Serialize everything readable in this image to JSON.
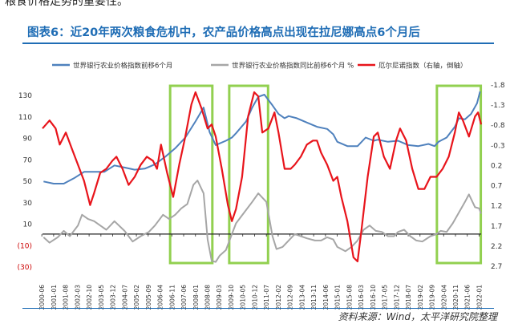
{
  "top_text": "粮食价格走势的重要性。",
  "title": "图表6：近20年两次粮食危机中，农产品价格高点出现在拉尼娜高点6个月后",
  "source": "资料来源：Wind，太平洋研究院整理",
  "chart_data": {
    "type": "line",
    "x_ticks": [
      "2000-06",
      "2001-01",
      "2001-08",
      "2002-03",
      "2002-10",
      "2003-05",
      "2003-12",
      "2004-07",
      "2005-02",
      "2005-09",
      "2006-04",
      "2006-11",
      "2007-06",
      "2008-01",
      "2008-08",
      "2009-03",
      "2009-10",
      "2010-05",
      "2010-12",
      "2011-07",
      "2012-02",
      "2012-09",
      "2013-04",
      "2013-11",
      "2014-06",
      "2015-01",
      "2015-08",
      "2016-03",
      "2016-10",
      "2017-05",
      "2017-12",
      "2018-07",
      "2019-02",
      "2019-09",
      "2020-04",
      "2020-11",
      "2021-06",
      "2022-01"
    ],
    "left_axis": {
      "ticks": [
        130,
        110,
        90,
        70,
        50,
        30,
        10,
        "(10)",
        "(30)"
      ],
      "range": [
        -30,
        140
      ]
    },
    "right_axis": {
      "ticks": [
        -1.8,
        -1.3,
        -0.8,
        -0.3,
        0.2,
        0.7,
        1.2,
        1.7,
        2.2,
        2.7
      ],
      "range": [
        -1.8,
        2.7
      ],
      "inverted": true
    },
    "legend": [
      {
        "name": "世界银行农业价格指数前移6个月",
        "color": "#4f81bd"
      },
      {
        "name": "世界银行农业价格指数同比前移6个月 %",
        "color": "#a6a6a6"
      },
      {
        "name": "厄尔尼诺指数（右轴，倒轴）",
        "color": "#e8141b"
      }
    ],
    "highlight_boxes": [
      {
        "from": "2006-10",
        "to": "2008-11"
      },
      {
        "from": "2009-09",
        "to": "2011-08"
      },
      {
        "from": "2019-12",
        "to": "2022-02"
      }
    ],
    "series": [
      {
        "name": "世界银行农业价格指数前移6个月",
        "axis": "left",
        "color": "#4f81bd",
        "points": [
          [
            2000.5,
            49
          ],
          [
            2001.0,
            47
          ],
          [
            2001.5,
            47
          ],
          [
            2002.0,
            52
          ],
          [
            2002.5,
            58
          ],
          [
            2003.0,
            58
          ],
          [
            2003.5,
            58
          ],
          [
            2004.0,
            64
          ],
          [
            2004.5,
            62
          ],
          [
            2005.0,
            60
          ],
          [
            2005.5,
            61
          ],
          [
            2006.0,
            65
          ],
          [
            2006.5,
            72
          ],
          [
            2007.0,
            80
          ],
          [
            2007.5,
            90
          ],
          [
            2008.0,
            105
          ],
          [
            2008.4,
            118
          ],
          [
            2008.7,
            95
          ],
          [
            2009.0,
            83
          ],
          [
            2009.5,
            87
          ],
          [
            2009.8,
            90
          ],
          [
            2010.0,
            94
          ],
          [
            2010.5,
            105
          ],
          [
            2010.8,
            118
          ],
          [
            2011.1,
            128
          ],
          [
            2011.4,
            130
          ],
          [
            2011.8,
            120
          ],
          [
            2012.1,
            112
          ],
          [
            2012.4,
            108
          ],
          [
            2012.6,
            110
          ],
          [
            2013.0,
            108
          ],
          [
            2013.5,
            104
          ],
          [
            2014.0,
            100
          ],
          [
            2014.5,
            98
          ],
          [
            2014.8,
            93
          ],
          [
            2015.0,
            86
          ],
          [
            2015.5,
            82
          ],
          [
            2016.0,
            82
          ],
          [
            2016.4,
            90
          ],
          [
            2016.8,
            87
          ],
          [
            2017.0,
            88
          ],
          [
            2017.5,
            86
          ],
          [
            2018.0,
            87
          ],
          [
            2018.5,
            83
          ],
          [
            2019.0,
            82
          ],
          [
            2019.5,
            84
          ],
          [
            2019.8,
            82
          ],
          [
            2020.0,
            86
          ],
          [
            2020.4,
            90
          ],
          [
            2020.8,
            100
          ],
          [
            2021.0,
            108
          ],
          [
            2021.3,
            107
          ],
          [
            2021.6,
            112
          ],
          [
            2021.9,
            122
          ],
          [
            2022.05,
            133
          ]
        ]
      },
      {
        "name": "世界银行农业价格指数同比前移6个月 %",
        "axis": "left",
        "color": "#a6a6a6",
        "points": [
          [
            2000.5,
            -3
          ],
          [
            2000.8,
            -8
          ],
          [
            2001.2,
            -3
          ],
          [
            2001.5,
            3
          ],
          [
            2001.8,
            -2
          ],
          [
            2002.2,
            8
          ],
          [
            2002.4,
            18
          ],
          [
            2002.7,
            14
          ],
          [
            2003.0,
            12
          ],
          [
            2003.3,
            8
          ],
          [
            2003.6,
            4
          ],
          [
            2004.0,
            12
          ],
          [
            2004.5,
            3
          ],
          [
            2004.9,
            -7
          ],
          [
            2005.3,
            -2
          ],
          [
            2005.7,
            2
          ],
          [
            2006.0,
            8
          ],
          [
            2006.4,
            18
          ],
          [
            2006.7,
            14
          ],
          [
            2007.0,
            18
          ],
          [
            2007.3,
            24
          ],
          [
            2007.6,
            28
          ],
          [
            2007.9,
            46
          ],
          [
            2008.1,
            50
          ],
          [
            2008.4,
            38
          ],
          [
            2008.6,
            -5
          ],
          [
            2008.8,
            -25
          ],
          [
            2009.0,
            -26
          ],
          [
            2009.2,
            -20
          ],
          [
            2009.5,
            -15
          ],
          [
            2009.8,
            0
          ],
          [
            2010.0,
            10
          ],
          [
            2010.4,
            20
          ],
          [
            2010.8,
            30
          ],
          [
            2011.1,
            38
          ],
          [
            2011.5,
            30
          ],
          [
            2011.8,
            -2
          ],
          [
            2012.0,
            -14
          ],
          [
            2012.3,
            -12
          ],
          [
            2012.5,
            -8
          ],
          [
            2012.9,
            0
          ],
          [
            2013.2,
            -2
          ],
          [
            2013.5,
            -4
          ],
          [
            2013.9,
            -6
          ],
          [
            2014.2,
            -6
          ],
          [
            2014.5,
            -3
          ],
          [
            2014.8,
            -5
          ],
          [
            2015.0,
            -12
          ],
          [
            2015.4,
            -16
          ],
          [
            2015.7,
            -12
          ],
          [
            2016.0,
            -6
          ],
          [
            2016.3,
            4
          ],
          [
            2016.6,
            8
          ],
          [
            2016.9,
            3
          ],
          [
            2017.2,
            2
          ],
          [
            2017.5,
            -2
          ],
          [
            2017.8,
            -2
          ],
          [
            2018.0,
            2
          ],
          [
            2018.3,
            4
          ],
          [
            2018.6,
            -2
          ],
          [
            2018.9,
            -6
          ],
          [
            2019.2,
            -7
          ],
          [
            2019.6,
            -2
          ],
          [
            2019.9,
            0
          ],
          [
            2020.1,
            3
          ],
          [
            2020.4,
            2
          ],
          [
            2020.7,
            10
          ],
          [
            2021.0,
            20
          ],
          [
            2021.3,
            30
          ],
          [
            2021.5,
            37
          ],
          [
            2021.8,
            25
          ],
          [
            2022.0,
            24
          ],
          [
            2022.1,
            19
          ]
        ]
      },
      {
        "name": "厄尔尼诺指数（右轴，倒轴）",
        "axis": "right",
        "color": "#e8141b",
        "points": [
          [
            2000.45,
            -0.7
          ],
          [
            2000.8,
            -0.9
          ],
          [
            2001.1,
            -0.7
          ],
          [
            2001.3,
            -0.3
          ],
          [
            2001.6,
            -0.6
          ],
          [
            2001.9,
            -0.2
          ],
          [
            2002.2,
            0.2
          ],
          [
            2002.5,
            0.6
          ],
          [
            2002.8,
            1.2
          ],
          [
            2003.0,
            0.9
          ],
          [
            2003.3,
            0.4
          ],
          [
            2003.6,
            0.3
          ],
          [
            2003.9,
            0.1
          ],
          [
            2004.1,
            0.0
          ],
          [
            2004.4,
            0.3
          ],
          [
            2004.7,
            0.7
          ],
          [
            2005.0,
            0.5
          ],
          [
            2005.3,
            0.2
          ],
          [
            2005.6,
            0.0
          ],
          [
            2005.9,
            0.1
          ],
          [
            2006.1,
            0.3
          ],
          [
            2006.3,
            -0.3
          ],
          [
            2006.6,
            0.4
          ],
          [
            2006.9,
            1.0
          ],
          [
            2007.2,
            0.2
          ],
          [
            2007.5,
            -0.5
          ],
          [
            2007.8,
            -1.3
          ],
          [
            2008.0,
            -1.6
          ],
          [
            2008.3,
            -1.2
          ],
          [
            2008.6,
            -0.7
          ],
          [
            2008.8,
            -0.8
          ],
          [
            2009.0,
            -0.5
          ],
          [
            2009.3,
            0.3
          ],
          [
            2009.6,
            1.2
          ],
          [
            2009.8,
            1.6
          ],
          [
            2010.0,
            1.3
          ],
          [
            2010.3,
            0.5
          ],
          [
            2010.6,
            -1.0
          ],
          [
            2010.9,
            -1.6
          ],
          [
            2011.1,
            -1.5
          ],
          [
            2011.3,
            -0.6
          ],
          [
            2011.6,
            -0.7
          ],
          [
            2011.9,
            -1.1
          ],
          [
            2012.1,
            -0.6
          ],
          [
            2012.4,
            0.3
          ],
          [
            2012.7,
            0.3
          ],
          [
            2012.9,
            0.2
          ],
          [
            2013.2,
            0.0
          ],
          [
            2013.5,
            -0.3
          ],
          [
            2013.8,
            -0.4
          ],
          [
            2014.0,
            -0.4
          ],
          [
            2014.2,
            -0.1
          ],
          [
            2014.5,
            0.2
          ],
          [
            2014.8,
            0.6
          ],
          [
            2015.0,
            0.5
          ],
          [
            2015.2,
            1.0
          ],
          [
            2015.5,
            1.6
          ],
          [
            2015.8,
            2.5
          ],
          [
            2016.0,
            2.6
          ],
          [
            2016.2,
            1.8
          ],
          [
            2016.5,
            0.5
          ],
          [
            2016.8,
            -0.5
          ],
          [
            2017.0,
            -0.6
          ],
          [
            2017.3,
            0.0
          ],
          [
            2017.6,
            0.3
          ],
          [
            2017.9,
            -0.4
          ],
          [
            2018.1,
            -0.7
          ],
          [
            2018.4,
            -0.4
          ],
          [
            2018.7,
            0.3
          ],
          [
            2019.0,
            0.8
          ],
          [
            2019.3,
            0.8
          ],
          [
            2019.6,
            0.5
          ],
          [
            2019.9,
            0.5
          ],
          [
            2020.2,
            0.3
          ],
          [
            2020.5,
            0.0
          ],
          [
            2020.8,
            -0.6
          ],
          [
            2021.0,
            -1.1
          ],
          [
            2021.2,
            -0.9
          ],
          [
            2021.5,
            -0.5
          ],
          [
            2021.8,
            -1.0
          ],
          [
            2021.95,
            -1.1
          ],
          [
            2022.1,
            -0.8
          ]
        ]
      }
    ]
  }
}
